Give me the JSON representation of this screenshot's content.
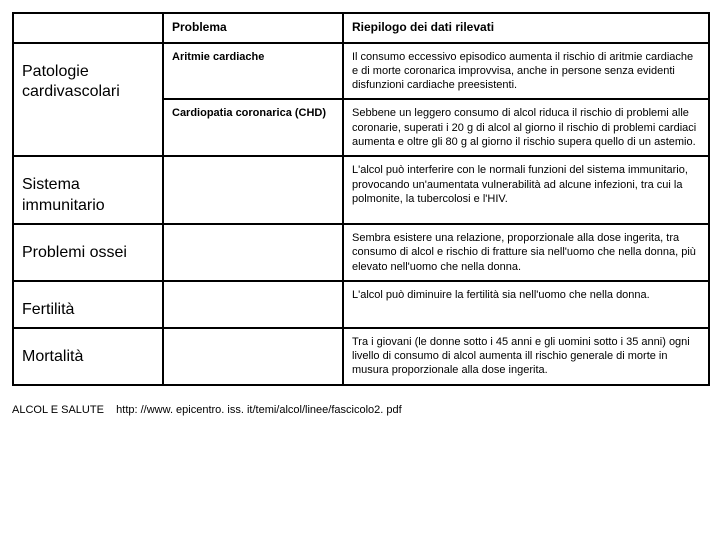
{
  "table": {
    "headers": {
      "problema": "Problema",
      "riepilogo": "Riepilogo dei dati rilevati"
    },
    "categories": {
      "cardiovascolari": "Patologie cardivascolari",
      "immunitario": "Sistema immunitario",
      "ossei": "Problemi ossei",
      "fertilita": "Fertilità",
      "mortalita": "Mortalità"
    },
    "rows": {
      "aritmie": {
        "problema": "Aritmie cardiache",
        "riepilogo": "Il consumo eccessivo episodico aumenta il rischio di aritmie cardiache e di morte coronarica improvvisa, anche in persone senza evidenti disfunzioni cardiache preesistenti."
      },
      "chd": {
        "problema": "Cardiopatia coronarica (CHD)",
        "riepilogo": "Sebbene un leggero consumo di alcol riduca il rischio di problemi alle coronarie, superati i 20 g di alcol al giorno il rischio di problemi cardiaci aumenta e oltre gli 80 g al giorno il rischio supera quello di un astemio."
      },
      "immunitario": {
        "riepilogo": "L'alcol può interferire con le normali funzioni del sistema immunitario, provocando un'aumentata vulnerabilità ad alcune infezioni, tra cui la polmonite, la tubercolosi e l'HIV."
      },
      "ossei": {
        "riepilogo": "Sembra esistere una relazione, proporzionale alla dose ingerita, tra consumo di alcol e rischio di fratture sia nell'uomo che nella donna, più elevato nell'uomo che nella donna."
      },
      "fertilita": {
        "riepilogo": "L'alcol può diminuire la fertilità sia nell'uomo che nella donna."
      },
      "mortalita": {
        "riepilogo": "Tra i giovani (le donne sotto i 45 anni e gli uomini sotto i 35 anni) ogni livello di consumo di alcol aumenta ill rischio generale di morte in musura proporzionale alla dose ingerita."
      }
    }
  },
  "footer": {
    "label": "ALCOL E SALUTE",
    "url": "http: //www. epicentro. iss. it/temi/alcol/linee/fascicolo2. pdf"
  }
}
